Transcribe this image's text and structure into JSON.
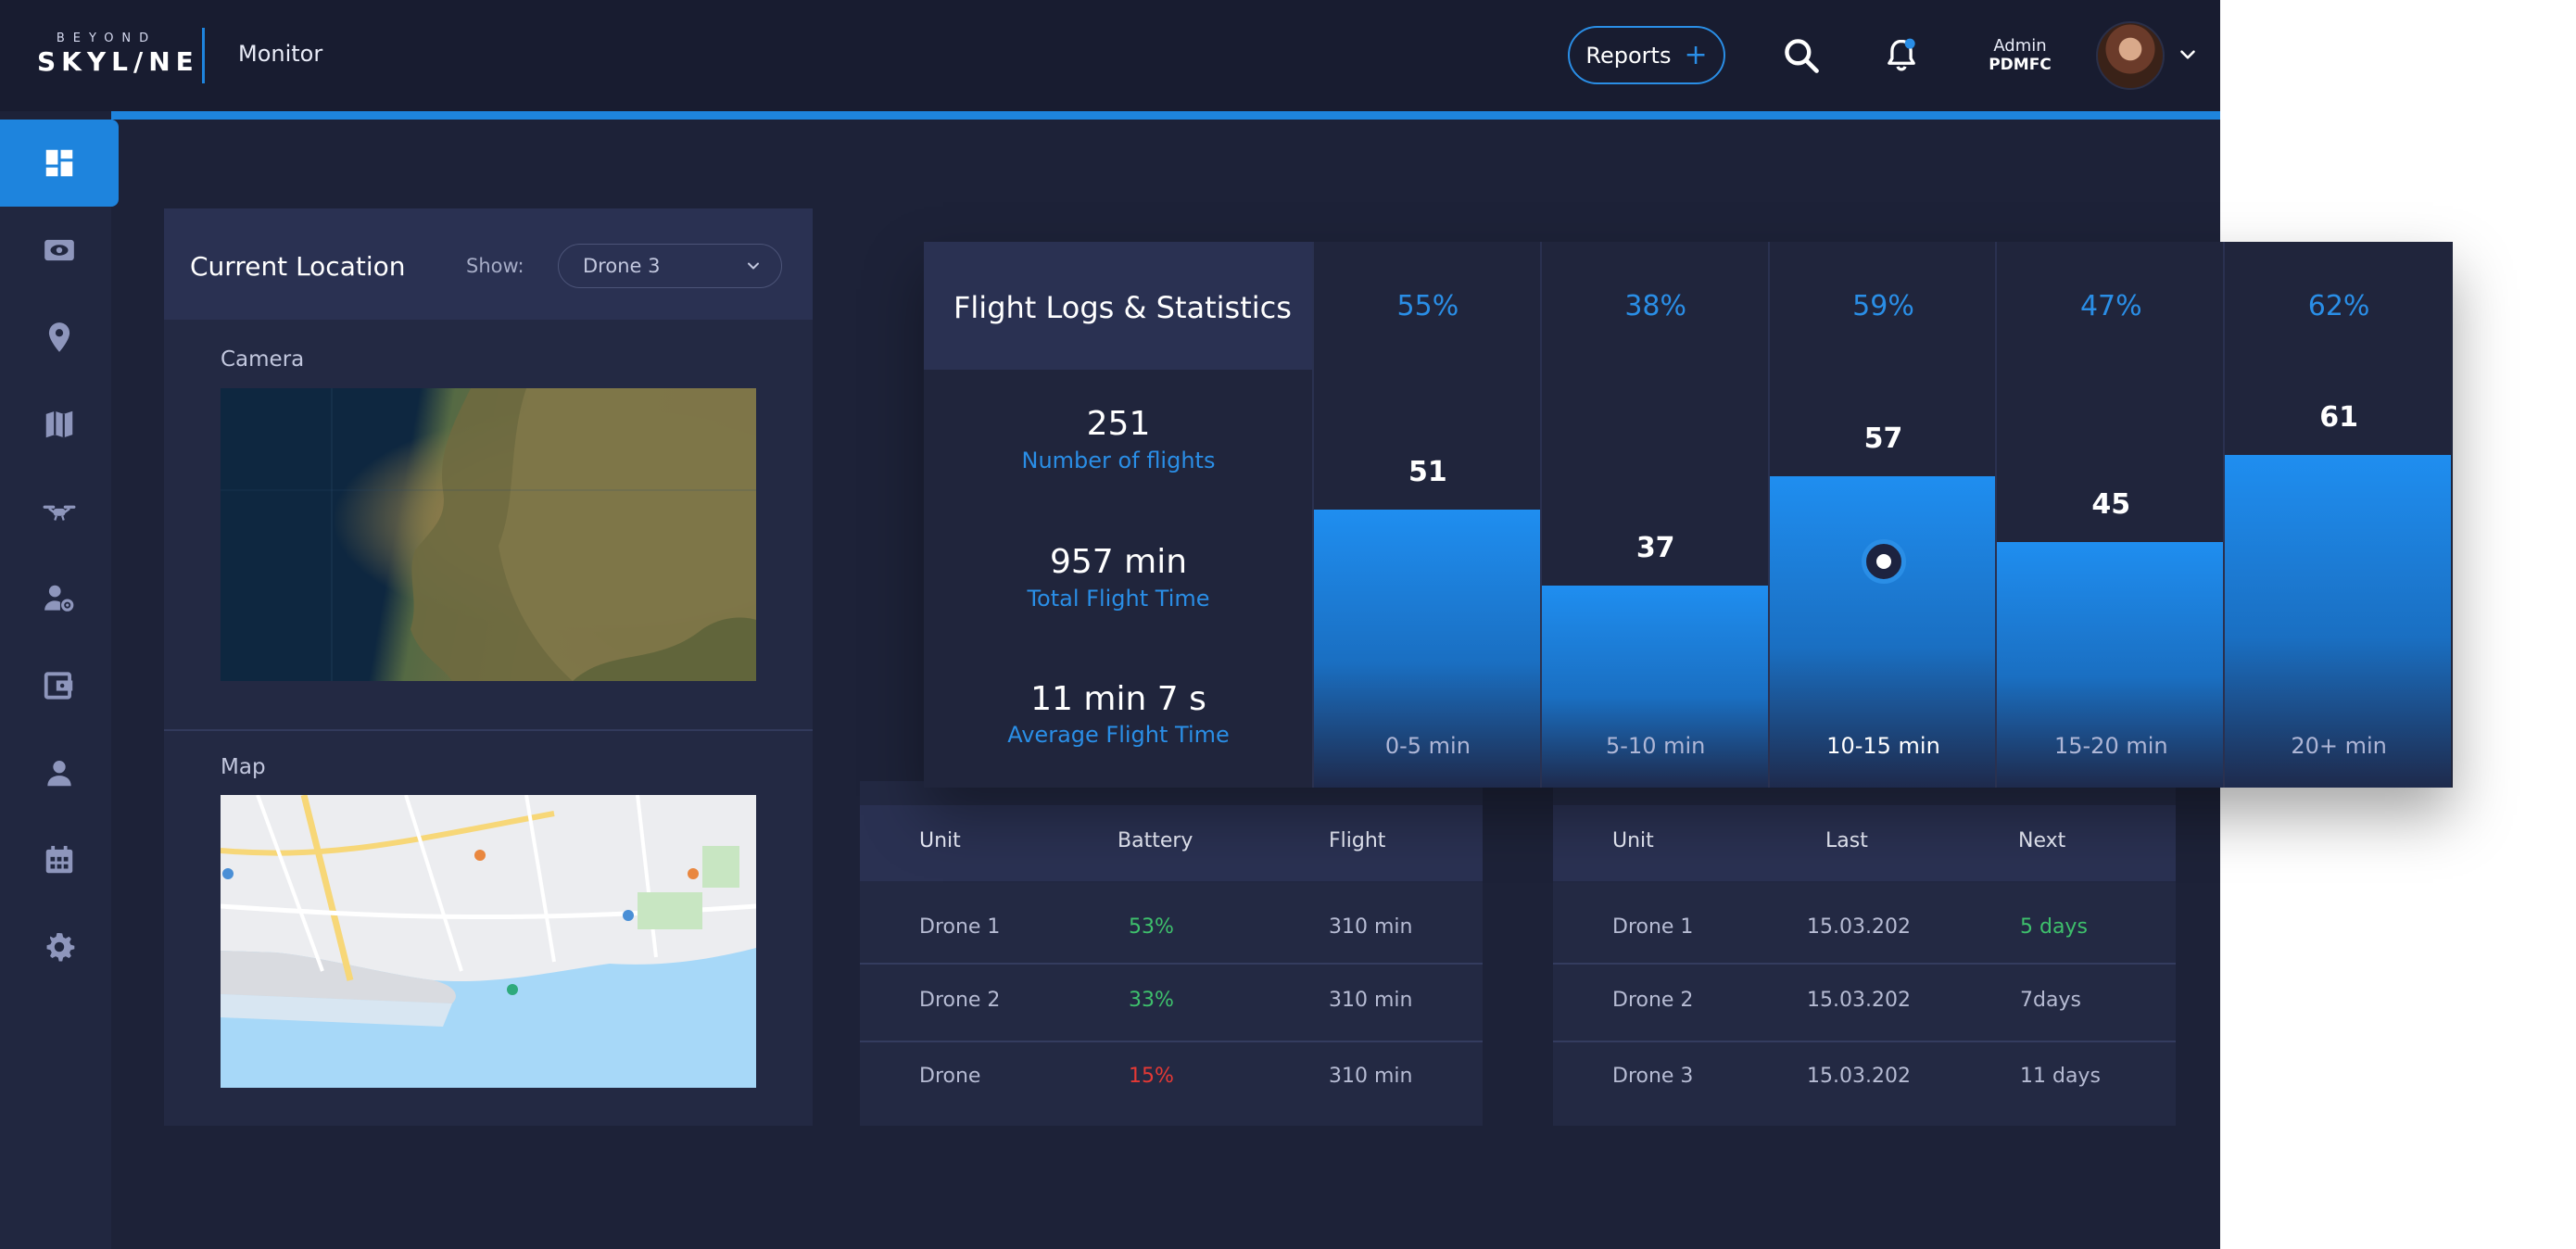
{
  "header": {
    "logo_small": "BEYOND",
    "logo_big": "SKYL/NE",
    "app_name": "Monitor",
    "reports_label": "Reports",
    "user_role": "Admin",
    "user_org": "PDMFC"
  },
  "sidebar": {
    "items": [
      {
        "icon": "dashboard-icon",
        "active": true
      },
      {
        "icon": "eye-icon",
        "active": false
      },
      {
        "icon": "location-pin-icon",
        "active": false
      },
      {
        "icon": "map-icon",
        "active": false
      },
      {
        "icon": "drone-icon",
        "active": false
      },
      {
        "icon": "user-settings-icon",
        "active": false
      },
      {
        "icon": "wallet-icon",
        "active": false
      },
      {
        "icon": "user-icon",
        "active": false
      },
      {
        "icon": "calendar-icon",
        "active": false
      },
      {
        "icon": "gear-icon",
        "active": false
      }
    ]
  },
  "location": {
    "title": "Current Location",
    "show_label": "Show:",
    "selected": "Drone 3",
    "camera_label": "Camera",
    "map_label": "Map"
  },
  "flight_logs": {
    "title": "Flight Logs & Statistics",
    "stats": [
      {
        "value": "251",
        "label": "Number of flights"
      },
      {
        "value": "957 min",
        "label": "Total Flight Time"
      },
      {
        "value": "11 min 7 s",
        "label": "Average Flight Time"
      }
    ]
  },
  "chart_data": {
    "type": "bar",
    "title": "Flight Logs & Statistics",
    "categories": [
      "0-5 min",
      "5-10 min",
      "10-15 min",
      "15-20 min",
      "20+ min"
    ],
    "values": [
      51,
      37,
      57,
      45,
      61
    ],
    "percentages": [
      "55%",
      "38%",
      "59%",
      "47%",
      "62%"
    ],
    "highlighted": "10-15 min",
    "ylim": [
      0,
      100
    ],
    "grid": false
  },
  "status_table": {
    "columns": [
      "Unit",
      "Battery",
      "Flight"
    ],
    "rows": [
      {
        "unit": "Drone 1",
        "battery": "53%",
        "flight": "310 min",
        "battery_color": "#3ec06c"
      },
      {
        "unit": "Drone 2",
        "battery": "33%",
        "flight": "310 min",
        "battery_color": "#3ec06c"
      },
      {
        "unit": "Drone",
        "battery": "15%",
        "flight": "310 min",
        "battery_color": "#e53935"
      }
    ]
  },
  "maintenance_table": {
    "columns": [
      "Unit",
      "Last",
      "Next"
    ],
    "rows": [
      {
        "unit": "Drone 1",
        "last": "15.03.202",
        "next": "5 days",
        "next_color": "#3ec06c"
      },
      {
        "unit": "Drone 2",
        "last": "15.03.202",
        "next": "7days",
        "next_color": "#b6bbd3"
      },
      {
        "unit": "Drone 3",
        "last": "15.03.202",
        "next": "11 days",
        "next_color": "#b6bbd3"
      }
    ]
  },
  "colors": {
    "accent": "#1e84dd",
    "background": "#1d2238",
    "panel": "#232943",
    "good": "#3ec06c",
    "bad": "#e53935"
  }
}
